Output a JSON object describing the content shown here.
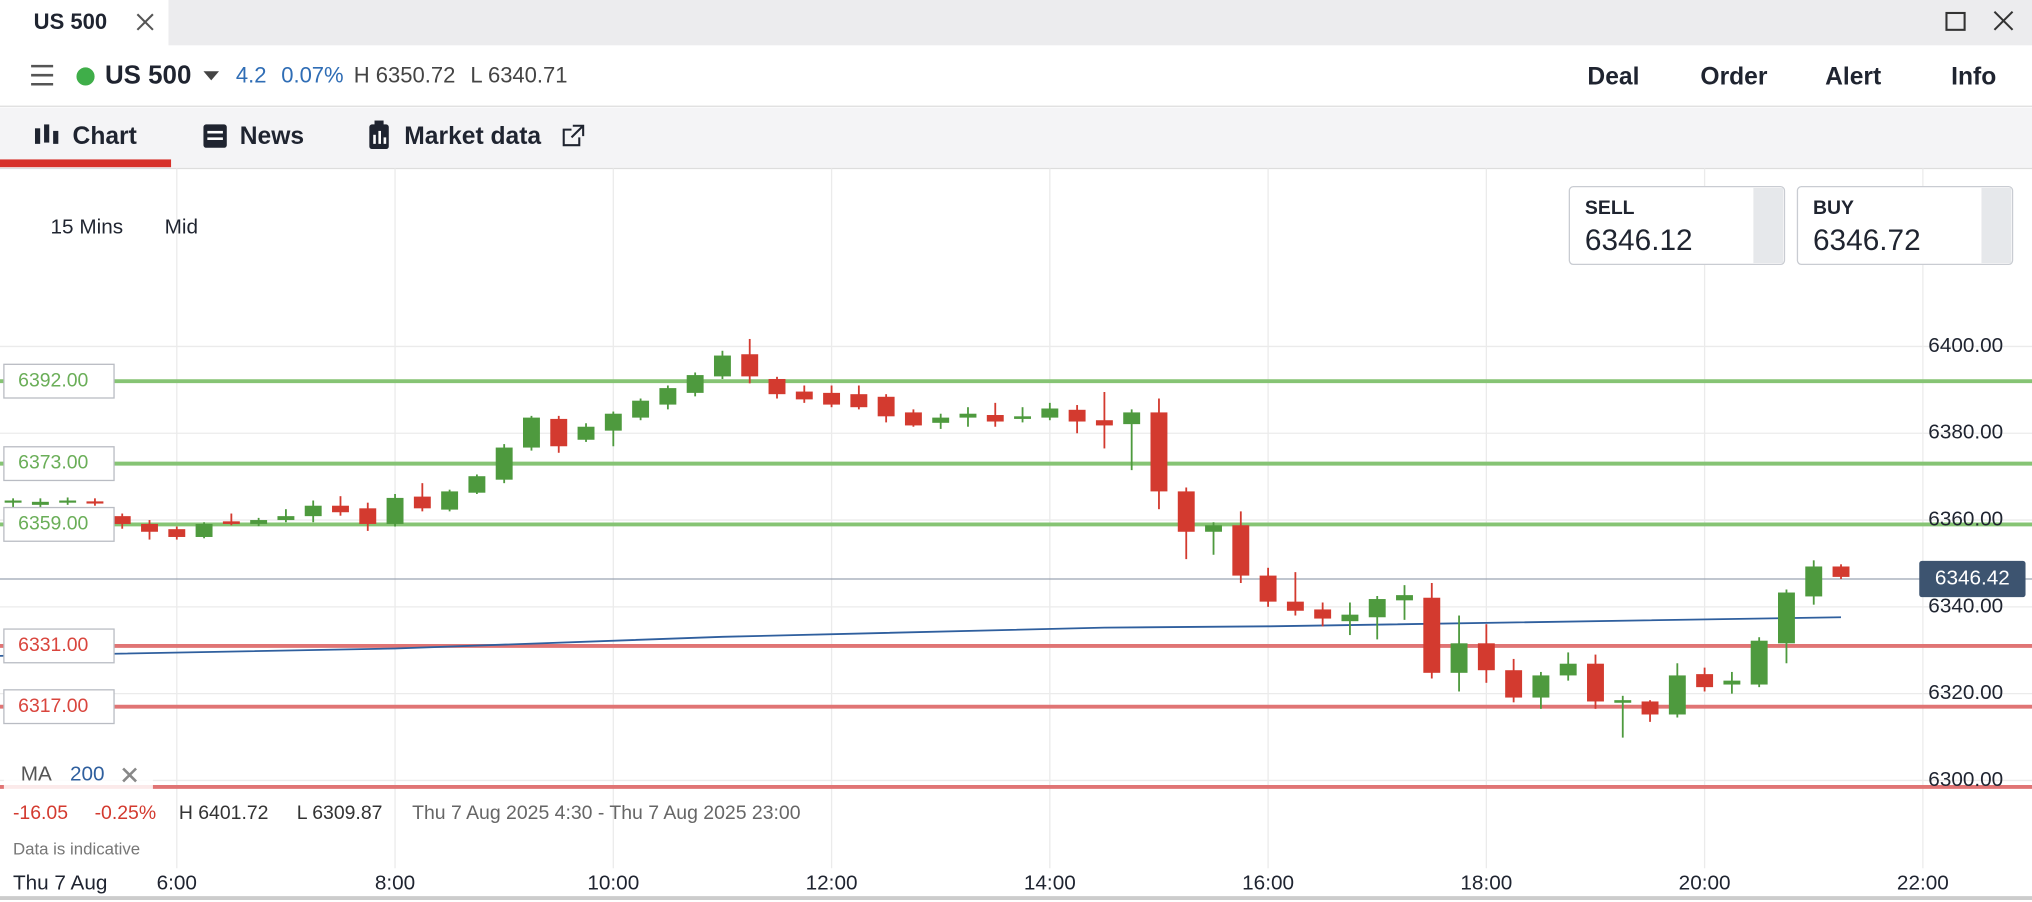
{
  "tab": {
    "title": "US 500"
  },
  "toolbar": {
    "instrument": "US 500",
    "change": 4.2,
    "change_pct": "0.07%",
    "high": "H 6350.72",
    "low": "L 6340.71",
    "actions": [
      "Deal",
      "Order",
      "Alert",
      "Info"
    ]
  },
  "nav": {
    "tabs": [
      "Chart",
      "News",
      "Market data"
    ]
  },
  "chart_controls": {
    "interval": "15 Mins",
    "price_type": "Mid"
  },
  "quotes": {
    "sell": {
      "label": "SELL",
      "price": 6346.12
    },
    "buy": {
      "label": "BUY",
      "price": 6346.72
    }
  },
  "chart_data": {
    "type": "candlestick",
    "x": [
      4.5,
      4.75,
      5,
      5.25,
      5.5,
      5.75,
      6,
      6.25,
      6.5,
      6.75,
      7,
      7.25,
      7.5,
      7.75,
      8,
      8.25,
      8.5,
      8.75,
      9,
      9.25,
      9.5,
      9.75,
      10,
      10.25,
      10.5,
      10.75,
      11,
      11.25,
      11.5,
      11.75,
      12,
      12.25,
      12.5,
      12.75,
      13,
      13.25,
      13.5,
      13.75,
      14,
      14.25,
      14.5,
      14.75,
      15,
      15.25,
      15.5,
      15.75,
      16,
      16.25,
      16.5,
      16.75,
      17,
      17.25,
      17.5,
      17.75,
      18,
      18.25,
      18.5,
      18.75,
      19,
      19.25,
      19.5,
      19.75,
      20,
      20.25,
      20.5,
      20.75,
      21,
      21.25
    ],
    "open": [
      6364,
      6363.5,
      6364,
      6364.3,
      6360.9,
      6359.1,
      6357.9,
      6356.1,
      6359.7,
      6359.1,
      6360,
      6360.9,
      6363.3,
      6362.7,
      6359.1,
      6365.4,
      6362.4,
      6366.3,
      6369.3,
      6376.7,
      6383.3,
      6378.5,
      6380.6,
      6383.6,
      6386.6,
      6389.3,
      6393.1,
      6398.2,
      6392.5,
      6389.6,
      6389.3,
      6389,
      6388.4,
      6384.8,
      6382.4,
      6383.6,
      6384.2,
      6383.3,
      6383.6,
      6385.4,
      6383,
      6382.1,
      6384.8,
      6366.6,
      6357.3,
      6358.8,
      6347.2,
      6341.2,
      6339.4,
      6336.7,
      6337.6,
      6341.5,
      6342.1,
      6324.8,
      6331.6,
      6325.4,
      6319.1,
      6324.2,
      6326.9,
      6317.9,
      6318.2,
      6315.2,
      6324.5,
      6322.1,
      6322.1,
      6331.6,
      6342.4,
      6349.3
    ],
    "high": [
      6365,
      6365,
      6365.2,
      6365,
      6361.5,
      6360,
      6358.5,
      6359.5,
      6361.5,
      6360.5,
      6362.5,
      6364.5,
      6365.5,
      6364,
      6366,
      6368.5,
      6367,
      6370.5,
      6377.5,
      6384,
      6384,
      6382.3,
      6385,
      6388,
      6391,
      6394,
      6399,
      6401.72,
      6393,
      6391,
      6391,
      6391,
      6389,
      6385.5,
      6384.5,
      6386,
      6387,
      6386,
      6387,
      6386.5,
      6389.5,
      6385.5,
      6388,
      6367.5,
      6359.5,
      6362,
      6349,
      6348,
      6341,
      6341,
      6342.5,
      6345,
      6345.5,
      6338,
      6336,
      6328,
      6325,
      6329.5,
      6329,
      6319.5,
      6318.5,
      6327,
      6326,
      6325,
      6333,
      6344,
      6350.72,
      6349.8
    ],
    "low": [
      6363,
      6363,
      6363.5,
      6363.3,
      6358,
      6355.5,
      6355.5,
      6355.8,
      6358.8,
      6358.6,
      6359.5,
      6359.5,
      6361,
      6357.5,
      6358.5,
      6362,
      6362,
      6366,
      6368.5,
      6376,
      6375.5,
      6378,
      6377,
      6383,
      6385.5,
      6388.5,
      6392.5,
      6391.5,
      6388,
      6387,
      6386,
      6385.5,
      6382.5,
      6381.5,
      6381,
      6381.5,
      6381.5,
      6382.5,
      6383,
      6380,
      6376.5,
      6371.5,
      6362.5,
      6351,
      6352,
      6345.5,
      6340,
      6338,
      6335.5,
      6333.5,
      6332.5,
      6337,
      6323.5,
      6320.5,
      6322.5,
      6318,
      6316.5,
      6323,
      6316.5,
      6309.87,
      6313.5,
      6314.5,
      6320.5,
      6320,
      6321.5,
      6327,
      6340.5,
      6346.4
    ],
    "close": [
      6364.5,
      6364.2,
      6364.5,
      6363.8,
      6359.1,
      6357.3,
      6356.1,
      6359.1,
      6359.1,
      6360.0,
      6360.9,
      6363.3,
      6361.8,
      6359.1,
      6365.1,
      6362.7,
      6366.6,
      6370.1,
      6376.7,
      6383.6,
      6377.0,
      6381.5,
      6384.5,
      6387.5,
      6390.4,
      6393.4,
      6397.9,
      6393.1,
      6389.0,
      6387.8,
      6386.6,
      6386.0,
      6383.9,
      6381.8,
      6383.6,
      6384.5,
      6382.7,
      6383.9,
      6385.7,
      6382.7,
      6381.8,
      6384.8,
      6366.6,
      6357.3,
      6358.8,
      6347.2,
      6341.2,
      6339.1,
      6337.3,
      6338.2,
      6341.8,
      6342.7,
      6324.8,
      6331.6,
      6325.4,
      6319.1,
      6324.2,
      6326.9,
      6318.2,
      6318.5,
      6315.2,
      6324.2,
      6321.5,
      6323.0,
      6332.2,
      6343.3,
      6349.3,
      6346.9
    ],
    "colors": {
      "up": "#4e9a3e",
      "down": "#d33a2f"
    },
    "xlim": [
      4.38,
      23
    ],
    "xticks": [
      {
        "value": 6,
        "label": "6:00"
      },
      {
        "value": 8,
        "label": "8:00"
      },
      {
        "value": 10,
        "label": "10:00"
      },
      {
        "value": 12,
        "label": "12:00"
      },
      {
        "value": 14,
        "label": "14:00"
      },
      {
        "value": 16,
        "label": "16:00"
      },
      {
        "value": 18,
        "label": "18:00"
      },
      {
        "value": 20,
        "label": "20:00"
      },
      {
        "value": 22,
        "label": "22:00"
      }
    ],
    "ylim": [
      6272,
      6441
    ],
    "yticks": [
      {
        "value": 6300,
        "label": "6300.00"
      },
      {
        "value": 6320,
        "label": "6320.00"
      },
      {
        "value": 6340,
        "label": "6340.00"
      },
      {
        "value": 6360,
        "label": "6360.00"
      },
      {
        "value": 6380,
        "label": "6380.00"
      },
      {
        "value": 6400,
        "label": "6400.00"
      }
    ],
    "grid": true,
    "levels": [
      {
        "value": 6392,
        "label": "6392.00",
        "color": "#86c474",
        "text_color": "#6aae58"
      },
      {
        "value": 6373,
        "label": "6373.00",
        "color": "#86c474",
        "text_color": "#6aae58"
      },
      {
        "value": 6359,
        "label": "6359.00",
        "color": "#86c474",
        "text_color": "#6aae58"
      },
      {
        "value": 6331,
        "label": "6331.00",
        "color": "#e07474",
        "text_color": "#d9453d"
      },
      {
        "value": 6317,
        "label": "6317.00",
        "color": "#e07474",
        "text_color": "#d9453d"
      },
      {
        "value": 6298.5,
        "color": "#e07474"
      }
    ],
    "current_price": {
      "value": 6346.42,
      "label": "6346.42"
    },
    "indicator": {
      "name": "MA",
      "period": 200,
      "color": "#2f5f9e",
      "x": [
        4.38,
        8,
        11,
        14.5,
        16,
        21.25
      ],
      "values": [
        6328.7,
        6330.4,
        6333.1,
        6335.2,
        6335.5,
        6337.6
      ]
    },
    "stats": {
      "change": "-16.05",
      "change_pct": "-0.25%",
      "high": "H 6401.72",
      "low": "L 6309.87",
      "range": "Thu 7 Aug 2025 4:30 - Thu 7 Aug 2025 23:00"
    },
    "note": "Data is indicative",
    "date_label": "Thu 7 Aug"
  }
}
